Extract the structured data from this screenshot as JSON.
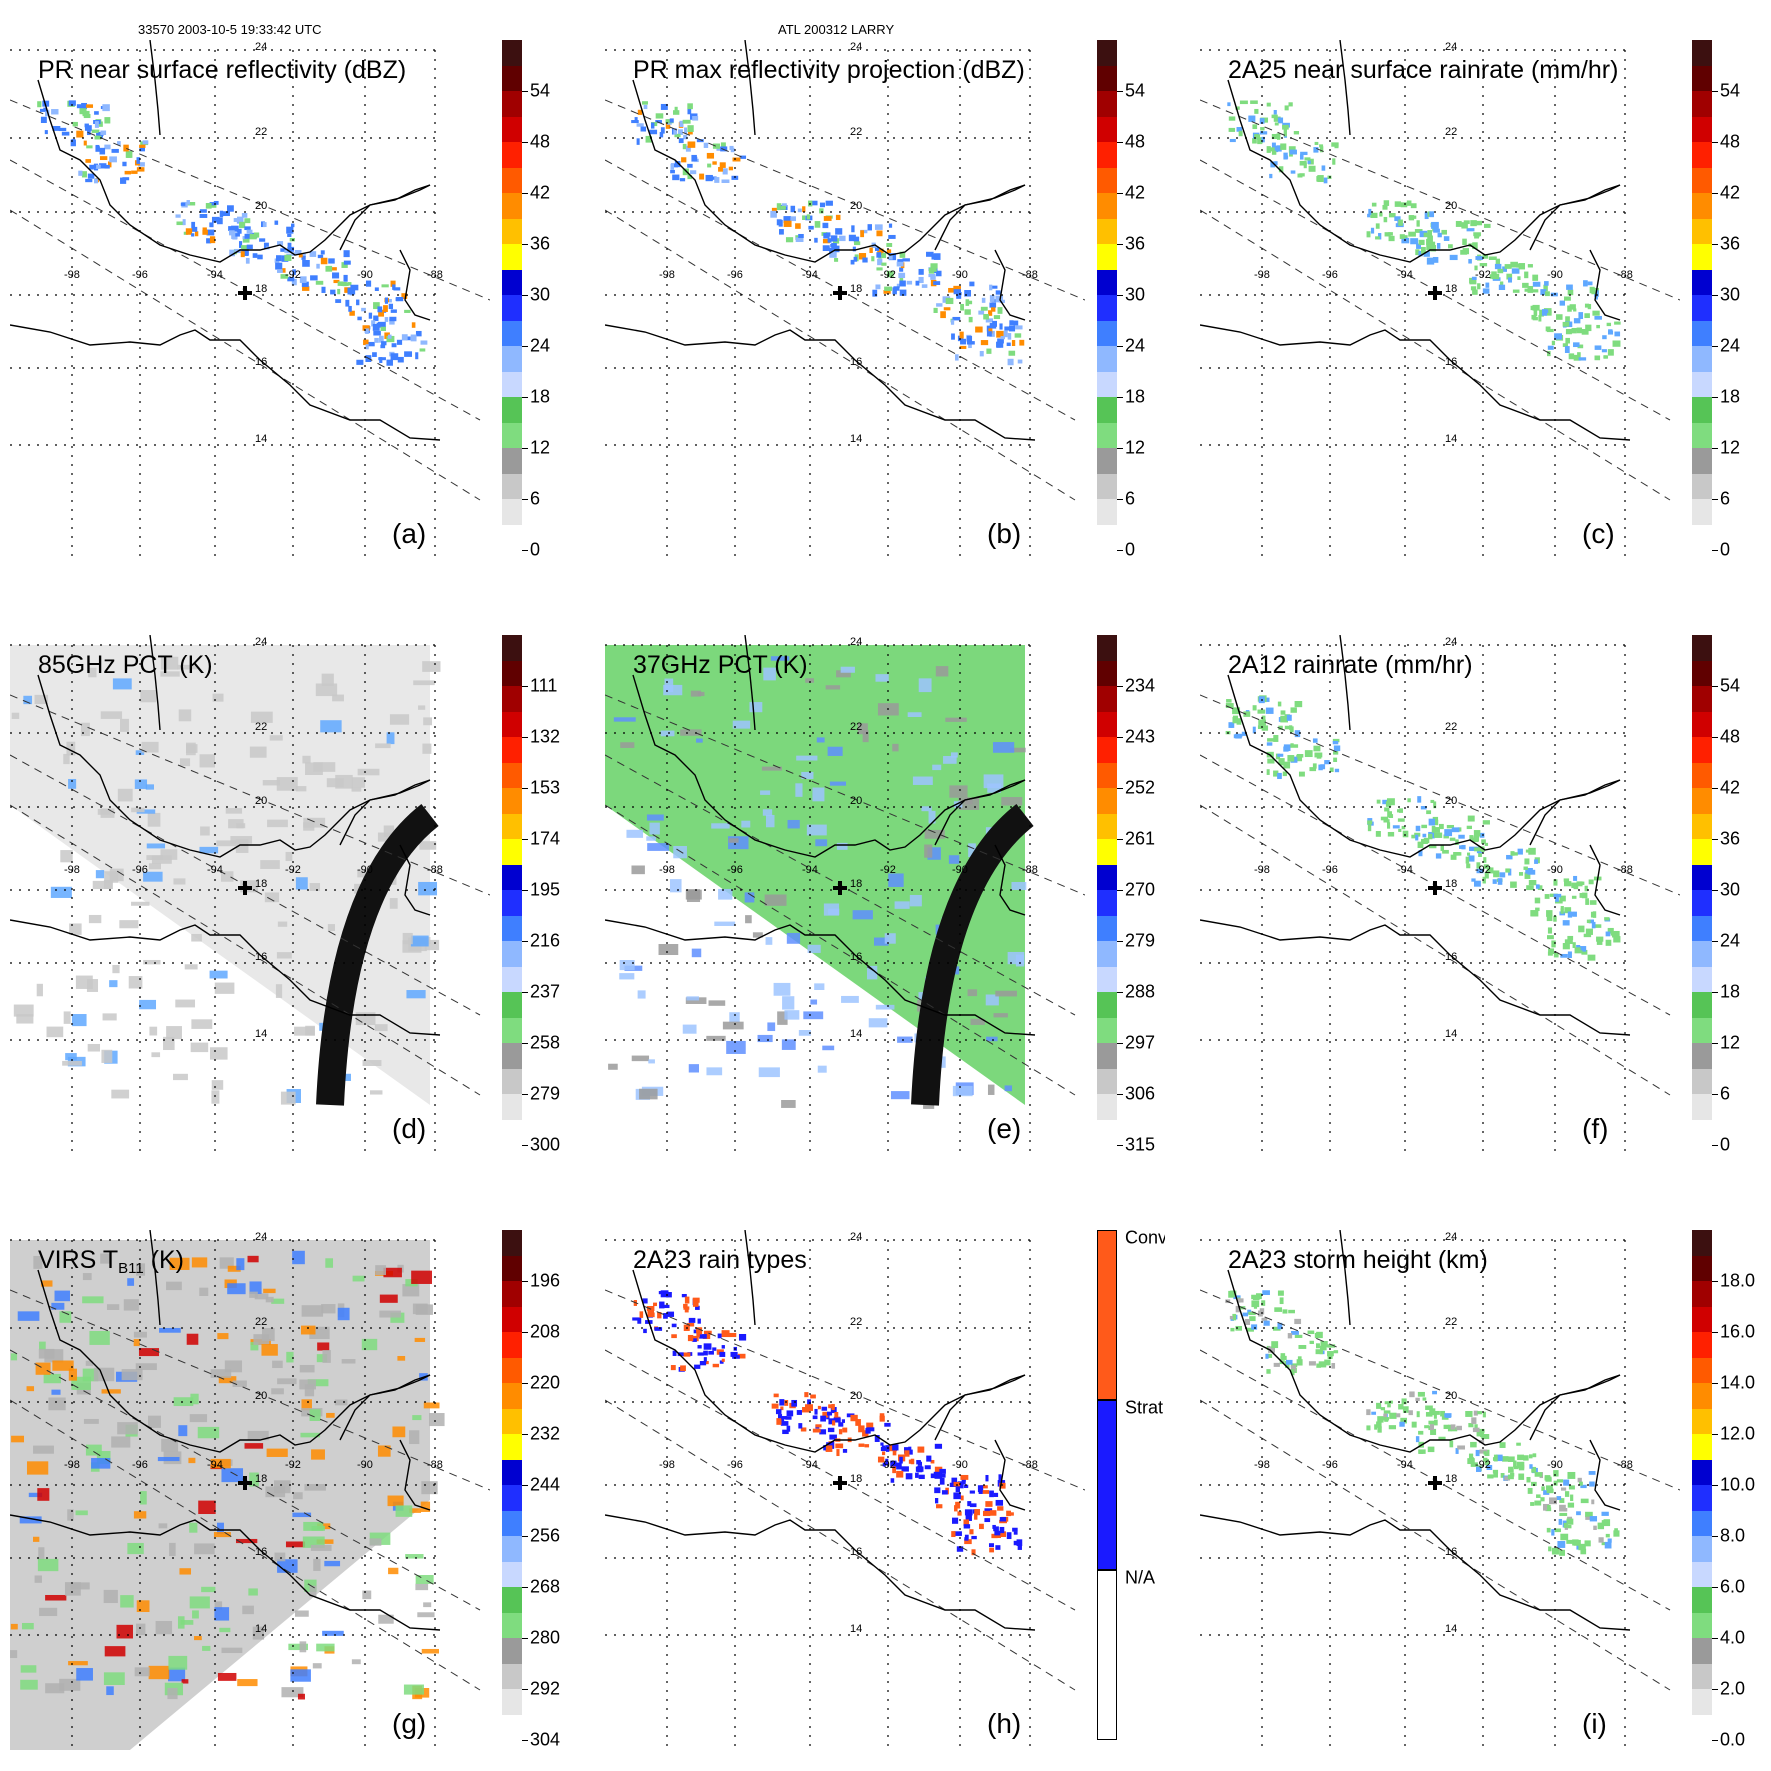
{
  "header": {
    "left": "33570 2003-10-5 19:33:42 UTC",
    "center": "ATL 200312 LARRY"
  },
  "lat_labels": [
    "24",
    "22",
    "20",
    "18",
    "16",
    "14"
  ],
  "lon_labels": [
    "-98",
    "-96",
    "-94",
    "-92",
    "-90",
    "-88"
  ],
  "panels": [
    {
      "id": "a",
      "title": "PR near surface reflectivity (dBZ)",
      "label": "(a)",
      "colorbar": {
        "ticks": [
          "54",
          "48",
          "42",
          "36",
          "30",
          "24",
          "18",
          "12",
          "6",
          "0"
        ]
      }
    },
    {
      "id": "b",
      "title": "PR max reflectivity projection (dBZ)",
      "label": "(b)",
      "colorbar": {
        "ticks": [
          "54",
          "48",
          "42",
          "36",
          "30",
          "24",
          "18",
          "12",
          "6",
          "0"
        ]
      }
    },
    {
      "id": "c",
      "title": "2A25 near surface rainrate (mm/hr)",
      "label": "(c)",
      "colorbar": {
        "ticks": [
          "54",
          "48",
          "42",
          "36",
          "30",
          "24",
          "18",
          "12",
          "6",
          "0"
        ]
      }
    },
    {
      "id": "d",
      "title": "85GHz PCT (K)",
      "label": "(d)",
      "colorbar": {
        "ticks": [
          "111",
          "132",
          "153",
          "174",
          "195",
          "216",
          "237",
          "258",
          "279",
          "300"
        ]
      }
    },
    {
      "id": "e",
      "title": "37GHz PCT (K)",
      "label": "(e)",
      "colorbar": {
        "ticks": [
          "234",
          "243",
          "252",
          "261",
          "270",
          "279",
          "288",
          "297",
          "306",
          "315"
        ]
      }
    },
    {
      "id": "f",
      "title": "2A12 rainrate (mm/hr)",
      "label": "(f)",
      "colorbar": {
        "ticks": [
          "54",
          "48",
          "42",
          "36",
          "30",
          "24",
          "18",
          "12",
          "6",
          "0"
        ]
      }
    },
    {
      "id": "g",
      "title_main": "VIRS T",
      "title_sub": "B11",
      "title_unit": " (K)",
      "label": "(g)",
      "colorbar": {
        "ticks": [
          "196",
          "208",
          "220",
          "232",
          "244",
          "256",
          "268",
          "280",
          "292",
          "304"
        ]
      }
    },
    {
      "id": "h",
      "title": "2A23 rain types",
      "label": "(h)",
      "colorbar": {
        "ticks": [
          "Conv",
          "Strat",
          "N/A"
        ]
      }
    },
    {
      "id": "i",
      "title": "2A23 storm height (km)",
      "label": "(i)",
      "colorbar": {
        "ticks": [
          "18.0",
          "16.0",
          "14.0",
          "12.0",
          "10.0",
          "8.0",
          "6.0",
          "4.0",
          "2.0",
          "0.0"
        ]
      }
    }
  ],
  "colors": {
    "refl": [
      "#ffffff",
      "#e6e6e6",
      "#c8c8c8",
      "#9a9a9a",
      "#7fdc7f",
      "#56c456",
      "#c8d8ff",
      "#8fb8ff",
      "#3f7fff",
      "#1f2fff",
      "#0000d0",
      "#ffff00",
      "#ffc000",
      "#ff8c00",
      "#ff5a00",
      "#ff2000",
      "#d00000",
      "#a00000",
      "#600000",
      "#3c1010"
    ],
    "conv": "#ff5a1a",
    "strat": "#1a1aff",
    "na": "#ffffff"
  }
}
